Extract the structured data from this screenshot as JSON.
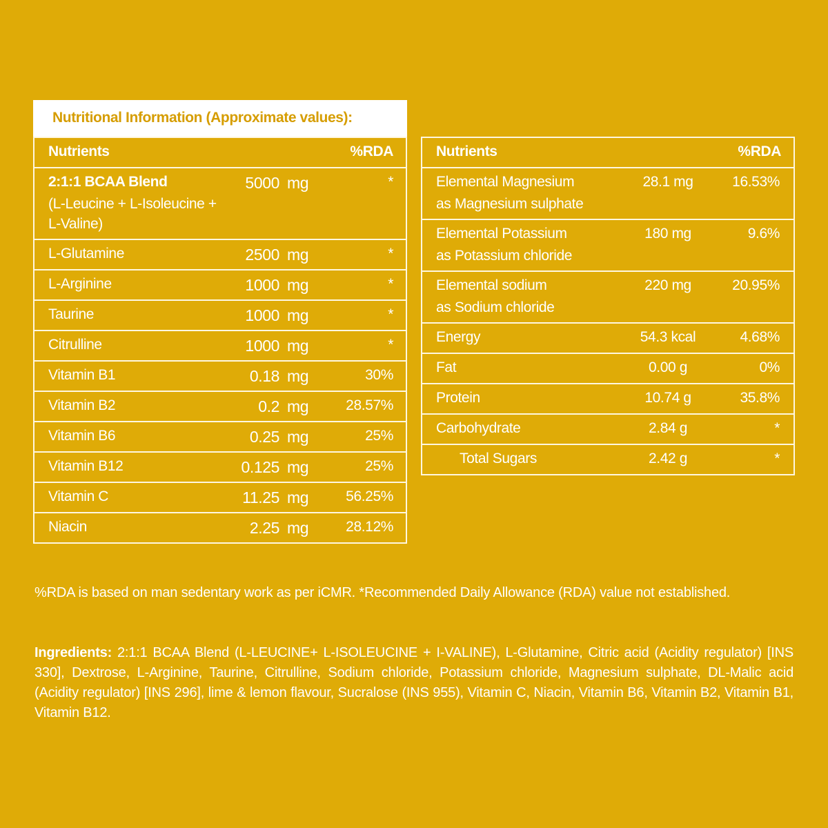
{
  "left_table": {
    "title": "Nutritional Information (Approximate values):",
    "header": [
      "Nutrients",
      "%RDA"
    ],
    "rows": [
      {
        "name": "2:1:1 BCAA Blend",
        "note": "(L-Leucine + L-Isoleucine + L-Valine)",
        "amount": "5000",
        "unit": "mg",
        "rda": "*"
      },
      {
        "name": "L-Glutamine",
        "amount": "2500",
        "unit": "mg",
        "rda": "*"
      },
      {
        "name": "L-Arginine",
        "amount": "1000",
        "unit": "mg",
        "rda": "*"
      },
      {
        "name": "Taurine",
        "amount": "1000",
        "unit": "mg",
        "rda": "*"
      },
      {
        "name": "Citrulline",
        "amount": "1000",
        "unit": "mg",
        "rda": "*"
      },
      {
        "name": "Vitamin B1",
        "amount": "0.18",
        "unit": "mg",
        "rda": "30%"
      },
      {
        "name": "Vitamin B2",
        "amount": "0.2",
        "unit": "mg",
        "rda": "28.57%"
      },
      {
        "name": "Vitamin B6",
        "amount": "0.25",
        "unit": "mg",
        "rda": "25%"
      },
      {
        "name": "Vitamin B12",
        "amount": "0.125",
        "unit": "mg",
        "rda": "25%"
      },
      {
        "name": "Vitamin C",
        "amount": "11.25",
        "unit": "mg",
        "rda": "56.25%"
      },
      {
        "name": "Niacin",
        "amount": "2.25",
        "unit": "mg",
        "rda": "28.12%"
      }
    ]
  },
  "right_table": {
    "header": [
      "Nutrients",
      "%RDA"
    ],
    "rows": [
      {
        "name": "Elemental Magnesium",
        "note": "as Magnesium sulphate",
        "amount": "28.1 mg",
        "rda": "16.53%"
      },
      {
        "name": "Elemental Potassium",
        "note": "as Potassium chloride",
        "amount": "180 mg",
        "rda": "9.6%"
      },
      {
        "name": "Elemental sodium",
        "note": "as Sodium chloride",
        "amount": "220 mg",
        "rda": "20.95%"
      },
      {
        "name": "Energy",
        "amount": "54.3 kcal",
        "rda": "4.68%"
      },
      {
        "name": "Fat",
        "amount": "0.00 g",
        "rda": "0%"
      },
      {
        "name": "Protein",
        "amount": "10.74 g",
        "rda": "35.8%"
      },
      {
        "name": "Carbohydrate",
        "amount": "2.84 g",
        "rda": "*"
      },
      {
        "name": "Total Sugars",
        "amount": "2.42 g",
        "rda": "*"
      }
    ]
  },
  "footnote": "%RDA is based on man sedentary work as per iCMR. *Recommended Daily Allowance (RDA) value not established.",
  "ingredients": {
    "label": "Ingredients:",
    "text": "2:1:1 BCAA Blend (L-LEUCINE+ L-ISOLEUCINE + I-VALINE), L-Glutamine, Citric acid (Acidity regulator) [INS 330], Dextrose, L-Arginine, Taurine, Citrulline, Sodium chloride, Potassium chloride, Magnesium sulphate, DL-Malic acid (Acidity regulator) [INS 296], lime & lemon flavour, Sucralose (INS 955), Vitamin C, Niacin, Vitamin B6, Vitamin B2, Vitamin B1, Vitamin B12."
  }
}
